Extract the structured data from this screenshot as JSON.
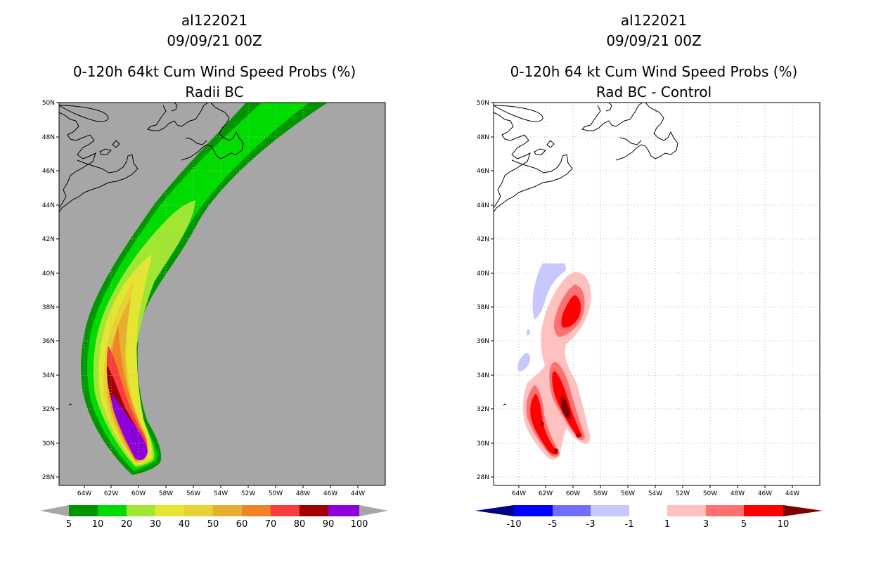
{
  "left_panel": {
    "storm_id": "al122021",
    "datetime": "09/09/21 00Z",
    "title": "0-120h 64kt Cum Wind Speed Probs (%)",
    "subtitle": "Radii BC"
  },
  "right_panel": {
    "storm_id": "al122021",
    "datetime": "09/09/21 00Z",
    "title": "0-120h 64 kt Cum Wind Speed Probs (%)",
    "subtitle": "Rad BC - Control"
  },
  "axes": {
    "lat_labels": [
      "50N",
      "48N",
      "46N",
      "44N",
      "42N",
      "40N",
      "38N",
      "36N",
      "34N",
      "32N",
      "30N",
      "28N"
    ],
    "lon_labels": [
      "64W",
      "62W",
      "60W",
      "58W",
      "56W",
      "54W",
      "52W",
      "50W",
      "48W",
      "46W",
      "44W"
    ]
  },
  "left_colorbar": {
    "labels": [
      "5",
      "10",
      "20",
      "30",
      "40",
      "50",
      "60",
      "70",
      "80",
      "90",
      "100"
    ],
    "colors": [
      "#009600",
      "#00dc00",
      "#a0e632",
      "#e6e632",
      "#e6d232",
      "#e6af2d",
      "#f08228",
      "#fa3c3c",
      "#a00000",
      "#8c00dc"
    ],
    "end_color": "#a6a6a6"
  },
  "right_colorbar": {
    "labels": [
      "-10",
      "-5",
      "-3",
      "-1",
      "1",
      "3",
      "5",
      "10"
    ],
    "colors": [
      "#0000c8",
      "#0000ff",
      "#7070ff",
      "#c8c8ff",
      "#ffffff",
      "#ffc0c0",
      "#ff7070",
      "#ff0000"
    ],
    "low_end": "#00008c",
    "high_end": "#800000"
  },
  "palette": {
    "ocean_background": "#a6a6a6",
    "grid": "#b4b4b4"
  }
}
